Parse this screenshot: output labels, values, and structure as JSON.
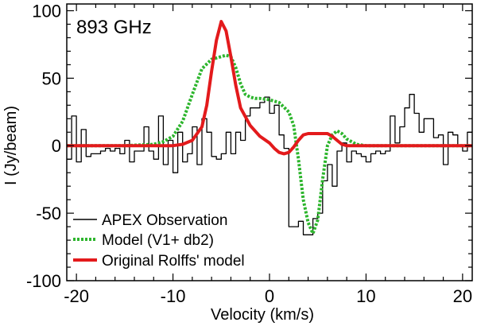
{
  "chart_data": {
    "type": "line",
    "title": "",
    "annotation": "893 GHz",
    "xlabel": "Velocity (km/s)",
    "ylabel": "I (Jy/beam)",
    "xlim": [
      -21,
      21
    ],
    "ylim": [
      -100,
      105
    ],
    "xticks": [
      -20,
      -10,
      0,
      10,
      20
    ],
    "yticks": [
      100,
      50,
      0,
      -50,
      -100
    ],
    "grid": false,
    "legend_position": "bottom-left",
    "series": [
      {
        "name": "APEX Observation",
        "color": "#000000",
        "style": "step",
        "x": [
          -21,
          -20.5,
          -20,
          -19.5,
          -19,
          -18.5,
          -18,
          -17.5,
          -17,
          -16.5,
          -16,
          -15.5,
          -15,
          -14.5,
          -14,
          -13.5,
          -13,
          -12.5,
          -12,
          -11.5,
          -11,
          -10.5,
          -10,
          -9.5,
          -9,
          -8.5,
          -8,
          -7.5,
          -7,
          -6.5,
          -6,
          -5.5,
          -5,
          -4.5,
          -4,
          -3.5,
          -3,
          -2.5,
          -2,
          -1.5,
          -1,
          -0.5,
          0,
          0.5,
          1,
          1.5,
          2,
          2.5,
          3,
          3.5,
          4,
          4.5,
          5,
          5.5,
          6,
          6.5,
          7,
          7.5,
          8,
          8.5,
          9,
          9.5,
          10,
          10.5,
          11,
          11.5,
          12,
          12.5,
          13,
          13.5,
          14,
          14.5,
          15,
          15.5,
          16,
          16.5,
          17,
          17.5,
          18,
          18.5,
          19,
          19.5,
          20,
          20.5
        ],
        "y": [
          -10,
          22,
          -12,
          12,
          -8,
          -6,
          -6,
          -4,
          -2,
          -4,
          -2,
          -6,
          4,
          -12,
          -4,
          -4,
          14,
          -4,
          -10,
          22,
          -14,
          4,
          -20,
          10,
          -12,
          -6,
          14,
          -14,
          20,
          10,
          -8,
          -10,
          -6,
          10,
          -6,
          10,
          4,
          22,
          28,
          28,
          32,
          36,
          24,
          30,
          8,
          -2,
          -60,
          -60,
          -56,
          -66,
          -66,
          -54,
          -50,
          -26,
          -14,
          -30,
          -4,
          2,
          -12,
          -4,
          -6,
          -8,
          -12,
          -6,
          -4,
          -6,
          -4,
          22,
          2,
          14,
          28,
          38,
          24,
          10,
          20,
          20,
          6,
          8,
          -14,
          10,
          8,
          0,
          -4,
          10
        ]
      },
      {
        "name": "Model (V1+ db2)",
        "color": "#2db52d",
        "style": "dotted",
        "x": [
          -21,
          -15,
          -12,
          -11,
          -10,
          -9,
          -8,
          -7,
          -6,
          -5,
          -4.5,
          -4,
          -3.5,
          -3,
          -2.5,
          -2,
          -1.5,
          -1,
          0,
          1,
          2,
          2.5,
          3,
          3.5,
          4,
          4.5,
          5,
          5.5,
          6,
          6.5,
          7,
          7.5,
          8,
          9,
          10,
          21
        ],
        "y": [
          0,
          0,
          1,
          3,
          7,
          18,
          38,
          57,
          64,
          66,
          67,
          66,
          58,
          46,
          38,
          36,
          35,
          35,
          34,
          32,
          25,
          15,
          -10,
          -40,
          -57,
          -65,
          -55,
          -25,
          0,
          8,
          11,
          9,
          5,
          1,
          0,
          0
        ]
      },
      {
        "name": "Original Rolffs' model",
        "color": "#e31a1c",
        "style": "solid",
        "x": [
          -21,
          -12,
          -10,
          -9,
          -8,
          -7,
          -6.5,
          -6,
          -5.5,
          -5,
          -4.5,
          -4,
          -3.5,
          -3,
          -2,
          -1,
          0,
          0.5,
          1,
          1.5,
          2,
          2.5,
          3,
          3.5,
          4,
          5,
          6,
          6.5,
          7,
          7.5,
          8,
          8.5,
          9,
          10,
          21
        ],
        "y": [
          0,
          0,
          0,
          1,
          4,
          14,
          30,
          55,
          78,
          92,
          85,
          66,
          45,
          28,
          15,
          7,
          2,
          -2,
          -5,
          -6,
          -5,
          -1,
          4,
          8,
          9,
          9,
          9,
          7,
          4,
          1,
          0,
          0,
          0,
          0,
          0
        ]
      }
    ]
  }
}
